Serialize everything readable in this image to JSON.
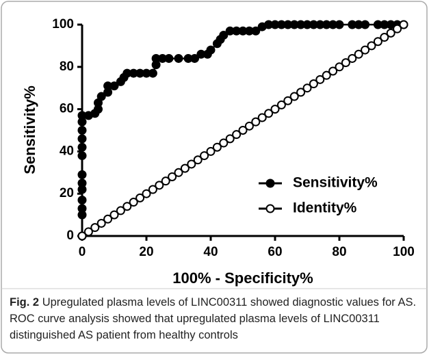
{
  "chart_data": {
    "type": "line",
    "xlabel": "100% - Specificity%",
    "ylabel": "Sensitivity%",
    "xlim": [
      0,
      100
    ],
    "ylim": [
      0,
      100
    ],
    "xticks": [
      0,
      20,
      40,
      60,
      80,
      100
    ],
    "yticks": [
      0,
      20,
      40,
      60,
      80,
      100
    ],
    "legend": "lower right",
    "series": [
      {
        "name": "Sensitivity%",
        "color": "#000000",
        "marker": "filled",
        "x": [
          0,
          0,
          0,
          0,
          0,
          0,
          0,
          0,
          0,
          0,
          0,
          0,
          0,
          2,
          4,
          5,
          5,
          6,
          8,
          8,
          10,
          12,
          13,
          14,
          16,
          18,
          20,
          22,
          23,
          23,
          25,
          27,
          30,
          33,
          35,
          37,
          39,
          40,
          42,
          43,
          44,
          46,
          48,
          50,
          52,
          54,
          56,
          58,
          60,
          62,
          64,
          66,
          68,
          70,
          72,
          74,
          76,
          78,
          80,
          84,
          86,
          88,
          92,
          94,
          96,
          98,
          100
        ],
        "values": [
          0,
          10,
          13,
          17,
          22,
          25,
          29,
          38,
          42,
          46,
          50,
          54,
          57,
          57,
          58,
          60,
          63,
          66,
          68,
          71,
          71,
          73,
          75,
          77,
          77,
          77,
          77,
          77,
          81,
          84,
          84,
          84,
          84,
          84,
          84,
          86,
          86,
          88,
          91,
          93,
          95,
          97,
          97,
          97,
          97,
          97,
          99,
          100,
          100,
          100,
          100,
          100,
          100,
          100,
          100,
          100,
          100,
          100,
          100,
          100,
          100,
          100,
          100,
          100,
          100,
          100,
          100
        ]
      },
      {
        "name": "Identity%",
        "color": "#000000",
        "marker": "open",
        "x": [
          0,
          2,
          4,
          6,
          8,
          10,
          12,
          14,
          16,
          18,
          20,
          22,
          24,
          26,
          28,
          30,
          32,
          34,
          36,
          38,
          40,
          42,
          44,
          46,
          48,
          50,
          52,
          54,
          56,
          58,
          60,
          62,
          64,
          66,
          68,
          70,
          72,
          74,
          76,
          78,
          80,
          82,
          84,
          86,
          88,
          90,
          92,
          94,
          96,
          98,
          100
        ],
        "values": [
          0,
          2,
          4,
          6,
          8,
          10,
          12,
          14,
          16,
          18,
          20,
          22,
          24,
          26,
          28,
          30,
          32,
          34,
          36,
          38,
          40,
          42,
          44,
          46,
          48,
          50,
          52,
          54,
          56,
          58,
          60,
          62,
          64,
          66,
          68,
          70,
          72,
          74,
          76,
          78,
          80,
          82,
          84,
          86,
          88,
          90,
          92,
          94,
          96,
          98,
          100
        ]
      }
    ]
  },
  "caption": {
    "label": "Fig. 2",
    "text": "Upregulated plasma levels of LINC00311 showed diagnostic values for AS. ROC curve analysis showed that upregulated plasma levels of LINC00311 distinguished AS patient from healthy controls"
  }
}
